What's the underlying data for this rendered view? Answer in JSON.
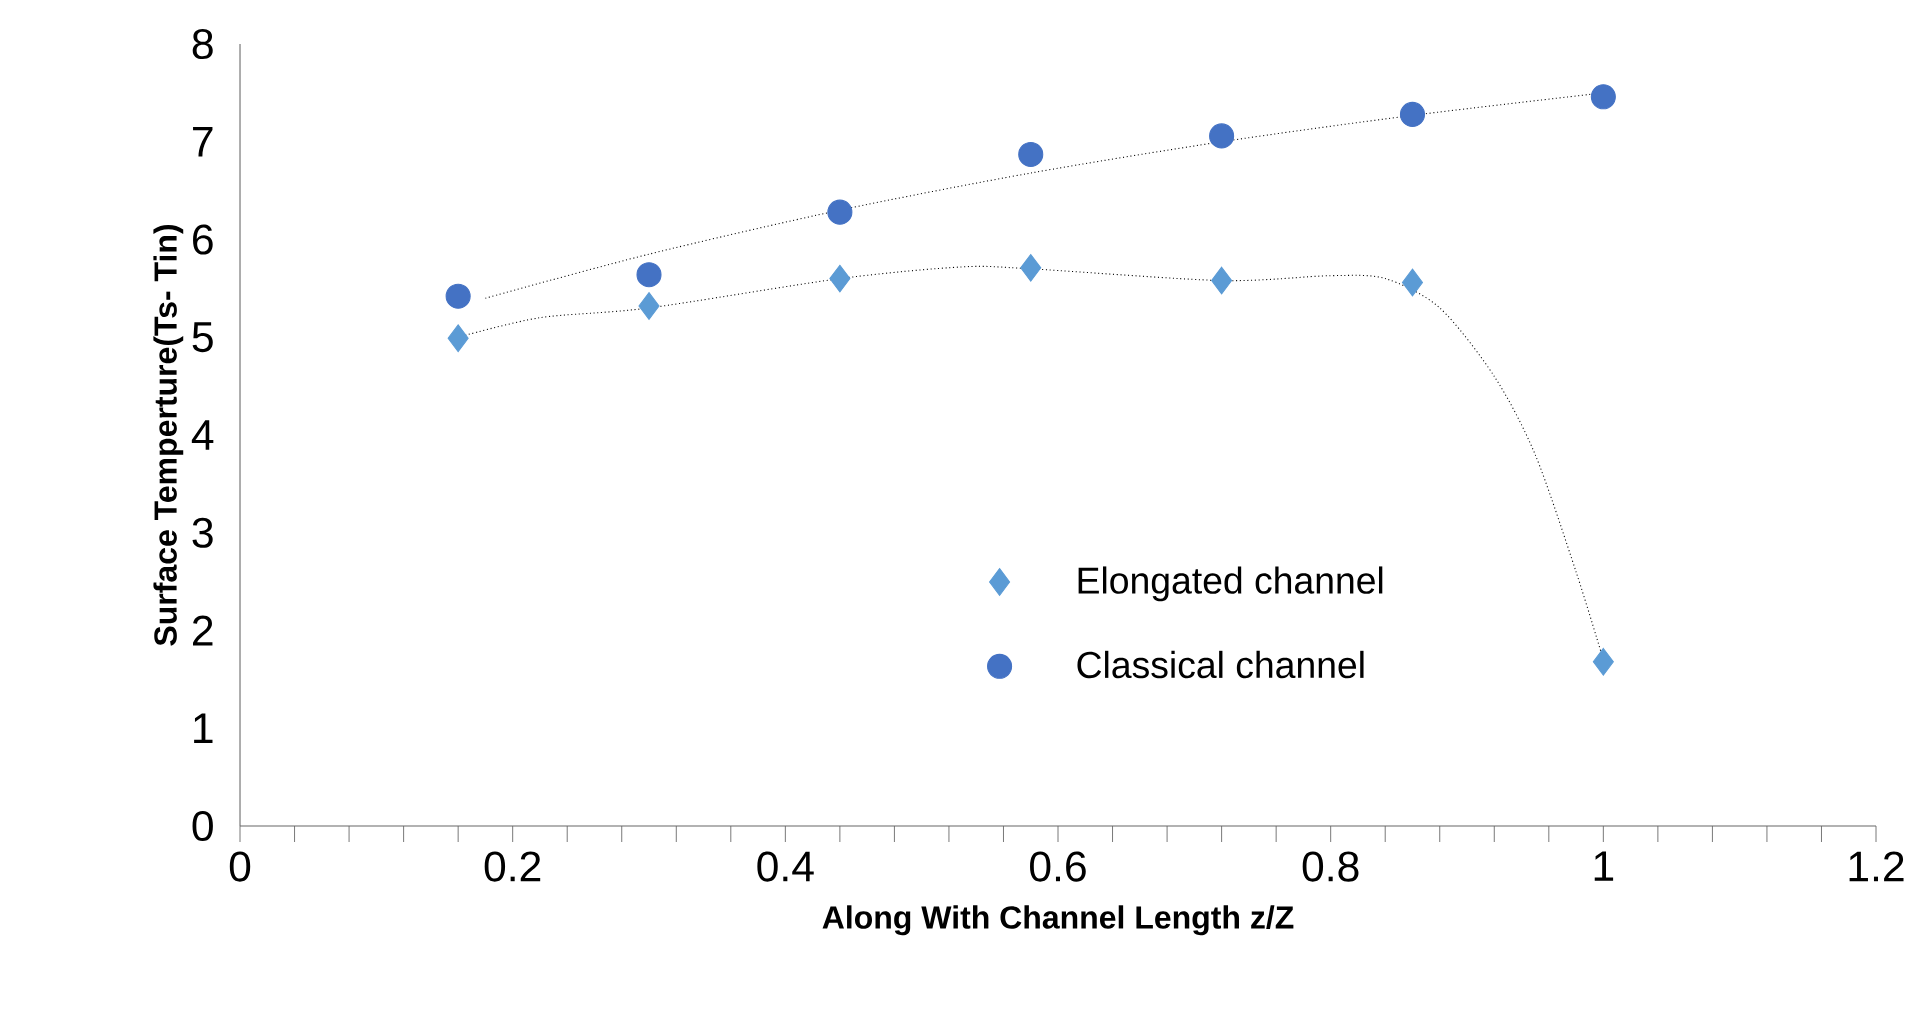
{
  "chart_data": {
    "type": "scatter",
    "xlabel": "Along  With Channel Length z/Z",
    "ylabel": "Surface  Temperture(Ts- Tin)",
    "series": [
      {
        "name": "Elongated channel",
        "color": "#5b9bd5",
        "marker": "diamond",
        "x": [
          0.16,
          0.3,
          0.44,
          0.58,
          0.72,
          0.86,
          1.0
        ],
        "values": [
          4.99,
          5.32,
          5.6,
          5.71,
          5.58,
          5.56,
          1.68
        ]
      },
      {
        "name": "Classical channel",
        "color": "#4472c4",
        "marker": "circle",
        "x": [
          0.16,
          0.3,
          0.44,
          0.58,
          0.72,
          0.86,
          1.0
        ],
        "values": [
          5.42,
          5.64,
          6.28,
          6.87,
          7.06,
          7.28,
          7.46
        ]
      },
      {
        "type": "line",
        "line_style": "dotted",
        "color": "#000000",
        "x": [
          0.16,
          0.22,
          0.3,
          0.44,
          0.53,
          0.58,
          0.72,
          0.8,
          0.84,
          0.88,
          0.92,
          0.95,
          0.98,
          1.0
        ],
        "values": [
          5.0,
          5.2,
          5.3,
          5.6,
          5.72,
          5.7,
          5.58,
          5.63,
          5.6,
          5.3,
          4.6,
          3.8,
          2.6,
          1.7
        ]
      },
      {
        "type": "line",
        "line_style": "dotted",
        "color": "#000000",
        "x": [
          0.18,
          0.3,
          0.44,
          0.58,
          0.72,
          0.86,
          1.0
        ],
        "values": [
          5.4,
          5.85,
          6.3,
          6.68,
          7.0,
          7.27,
          7.5
        ]
      }
    ],
    "xlim": [
      0,
      1.2
    ],
    "xticks": [
      0,
      0.2,
      0.4,
      0.6,
      0.8,
      1,
      1.2
    ],
    "ylim": [
      0,
      8
    ],
    "yticks": [
      0,
      1,
      2,
      3,
      4,
      5,
      6,
      7,
      8
    ],
    "grid": false,
    "legend": "bottom"
  }
}
